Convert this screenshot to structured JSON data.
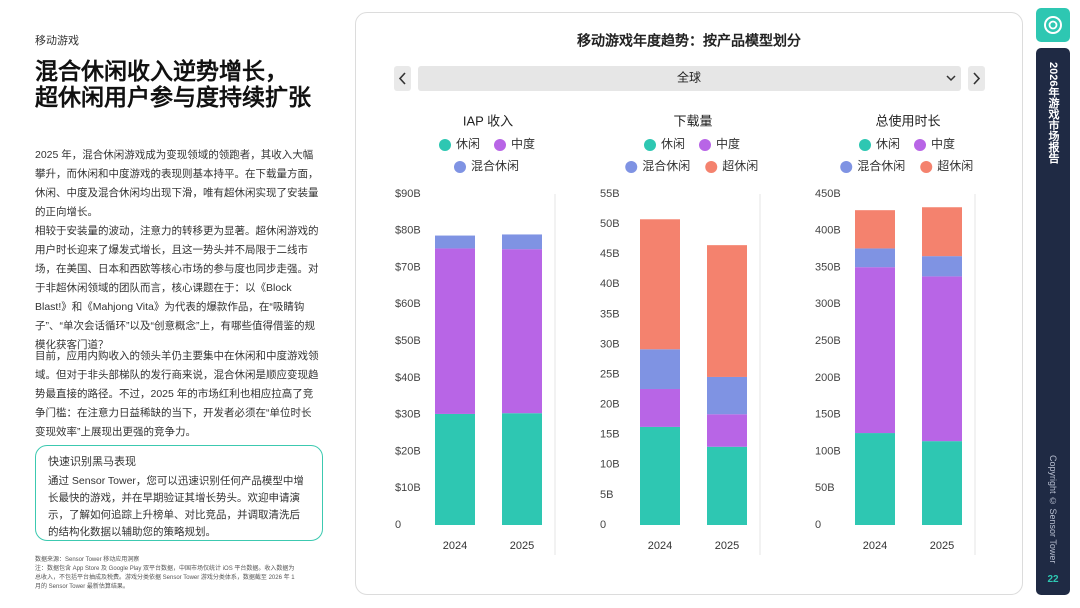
{
  "sidebar": {
    "section": "移动游戏",
    "headline": [
      "混合休闲收入逆势增长，",
      "超休闲用户参与度持续扩张"
    ],
    "paragraphs": [
      "2025 年，混合休闲游戏成为变现领域的领跑者，其收入大幅攀升，而休闲和中度游戏的表现则基本持平。在下载量方面，休闲、中度及混合休闲均出现下滑，唯有超休闲实现了安装量的正向增长。",
      "相较于安装量的波动，注意力的转移更为显著。超休闲游戏的用户时长迎来了爆发式增长，且这一势头并不局限于二线市场，在美国、日本和西欧等核心市场的参与度也同步走强。对于非超休闲领域的团队而言，核心课题在于：以《Block Blast!》和《Mahjong Vita》为代表的爆款作品，在“吸睛钩子”、“单次会话循环”以及“创意概念”上，有哪些值得借鉴的规模化获客门道？",
      "目前，应用内购收入的领头羊仍主要集中在休闲和中度游戏领域。但对于非头部梯队的发行商来说，混合休闲是顺应变现趋势最直接的路径。不过，2025 年的市场红利也相应拉高了竞争门槛：在注意力日益稀缺的当下，开发者必须在“单位时长变现效率”上展现出更强的竞争力。"
    ],
    "callout": {
      "title": "快速识别黑马表现",
      "body": "通过 Sensor Tower，您可以迅速识别任何产品模型中增长最快的游戏，并在早期验证其增长势头。欢迎申请演示，了解如何追踪上升榜单、对比竞品，并调取清洗后的结构化数据以辅助您的策略规划。"
    },
    "footnotes": [
      "数据来源：Sensor Tower 移动应用洞察",
      "注：数据包含 App Store 及 Google Play 双平台数据，中国市场仅统计 iOS 平台数据。收入数据为总收入，不包括平台抽成及税费。游戏分类依据 Sensor Tower 游戏分类体系，数据截至 2026 年 1 月的 Sensor Tower 最新估算结果。"
    ]
  },
  "panel": {
    "title": "移动游戏年度趋势：按产品模型划分",
    "region": "全球"
  },
  "chart_data": [
    {
      "type": "bar",
      "stacked": true,
      "title": "IAP 收入",
      "categories": [
        "2024",
        "2025"
      ],
      "series": [
        {
          "name": "休闲",
          "color": "#2ec7b2",
          "values": [
            30.2,
            30.4
          ]
        },
        {
          "name": "中度",
          "color": "#b865e6",
          "values": [
            45,
            44.6
          ]
        },
        {
          "name": "混合休闲",
          "color": "#7f93e3",
          "values": [
            3.5,
            4
          ]
        }
      ],
      "ylim": [
        0,
        90
      ],
      "yticks": [
        0,
        {
          "value": 10,
          "label": "$10B"
        },
        {
          "value": 20,
          "label": "$20B"
        },
        {
          "value": 30,
          "label": "$30B"
        },
        {
          "value": 40,
          "label": "$40B"
        },
        {
          "value": 50,
          "label": "$50B"
        },
        {
          "value": 60,
          "label": "$60B"
        },
        {
          "value": 70,
          "label": "$70B"
        },
        {
          "value": 80,
          "label": "$80B"
        },
        {
          "value": 90,
          "label": "$90B"
        }
      ]
    },
    {
      "type": "bar",
      "stacked": true,
      "title": "下载量",
      "categories": [
        "2024",
        "2025"
      ],
      "series": [
        {
          "name": "休闲",
          "color": "#2ec7b2",
          "values": [
            16.3,
            13
          ]
        },
        {
          "name": "中度",
          "color": "#b865e6",
          "values": [
            6.3,
            5.4
          ]
        },
        {
          "name": "混合休闲",
          "color": "#7f93e3",
          "values": [
            6.6,
            6.2
          ]
        },
        {
          "name": "超休闲",
          "color": "#f4826e",
          "values": [
            21.6,
            21.9
          ]
        }
      ],
      "ylim": [
        0,
        55
      ],
      "yticks": [
        0,
        {
          "value": 5,
          "label": "5B"
        },
        {
          "value": 10,
          "label": "10B"
        },
        {
          "value": 15,
          "label": "15B"
        },
        {
          "value": 20,
          "label": "20B"
        },
        {
          "value": 25,
          "label": "25B"
        },
        {
          "value": 30,
          "label": "30B"
        },
        {
          "value": 35,
          "label": "35B"
        },
        {
          "value": 40,
          "label": "40B"
        },
        {
          "value": 45,
          "label": "45B"
        },
        {
          "value": 50,
          "label": "50B"
        },
        {
          "value": 55,
          "label": "55B"
        }
      ]
    },
    {
      "type": "bar",
      "stacked": true,
      "title": "总使用时长",
      "categories": [
        "2024",
        "2025"
      ],
      "series": [
        {
          "name": "休闲",
          "color": "#2ec7b2",
          "values": [
            125,
            114
          ]
        },
        {
          "name": "中度",
          "color": "#b865e6",
          "values": [
            225.5,
            224
          ]
        },
        {
          "name": "混合休闲",
          "color": "#7f93e3",
          "values": [
            25.5,
            27.5
          ]
        },
        {
          "name": "超休闲",
          "color": "#f4826e",
          "values": [
            52,
            66.5
          ]
        }
      ],
      "ylim": [
        0,
        450
      ],
      "yticks": [
        0,
        {
          "value": 50,
          "label": "50B"
        },
        {
          "value": 100,
          "label": "100B"
        },
        {
          "value": 150,
          "label": "150B"
        },
        {
          "value": 200,
          "label": "200B"
        },
        {
          "value": 250,
          "label": "250B"
        },
        {
          "value": 300,
          "label": "300B"
        },
        {
          "value": 350,
          "label": "350B"
        },
        {
          "value": 400,
          "label": "400B"
        },
        {
          "value": 450,
          "label": "450B"
        }
      ]
    }
  ],
  "nav": {
    "report_title": "2026年游戏市场报告",
    "copyright": "Copyright © Sensor Tower",
    "page": 22
  }
}
